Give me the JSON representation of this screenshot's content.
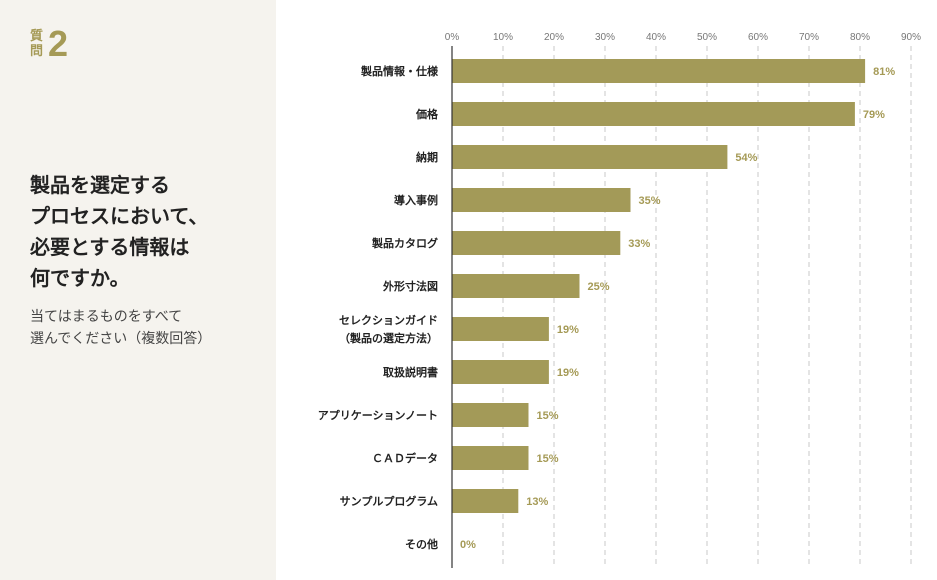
{
  "question": {
    "label": "質問",
    "number": "2",
    "title_lines": [
      "製品を選定する",
      "プロセスにおいて、",
      "必要とする情報は",
      "何ですか。"
    ],
    "note_lines": [
      "当てはまるものをすべて",
      "選んでください（複数回答）"
    ]
  },
  "colors": {
    "bar": "#a39a58",
    "accent": "#a59a56",
    "panel": "#f5f3ee"
  },
  "chart_data": {
    "type": "bar",
    "orientation": "horizontal",
    "categories": [
      [
        "製品情報・仕様"
      ],
      [
        "価格"
      ],
      [
        "納期"
      ],
      [
        "導入事例"
      ],
      [
        "製品カタログ"
      ],
      [
        "外形寸法図"
      ],
      [
        "セレクションガイド",
        "（製品の選定方法）"
      ],
      [
        "取扱説明書"
      ],
      [
        "アプリケーションノート"
      ],
      [
        "ＣＡＤデータ"
      ],
      [
        "サンプルプログラム"
      ],
      [
        "その他"
      ]
    ],
    "values": [
      81,
      79,
      54,
      35,
      33,
      25,
      19,
      19,
      15,
      15,
      13,
      0
    ],
    "value_labels": [
      "81%",
      "79%",
      "54%",
      "35%",
      "33%",
      "25%",
      "19%",
      "19%",
      "15%",
      "15%",
      "13%",
      "0%"
    ],
    "ticks": [
      0,
      10,
      20,
      30,
      40,
      50,
      60,
      70,
      80,
      90
    ],
    "tick_labels": [
      "0%",
      "10%",
      "20%",
      "30%",
      "40%",
      "50%",
      "60%",
      "70%",
      "80%",
      "90%"
    ],
    "xlim": [
      0,
      90
    ],
    "grid": true
  }
}
